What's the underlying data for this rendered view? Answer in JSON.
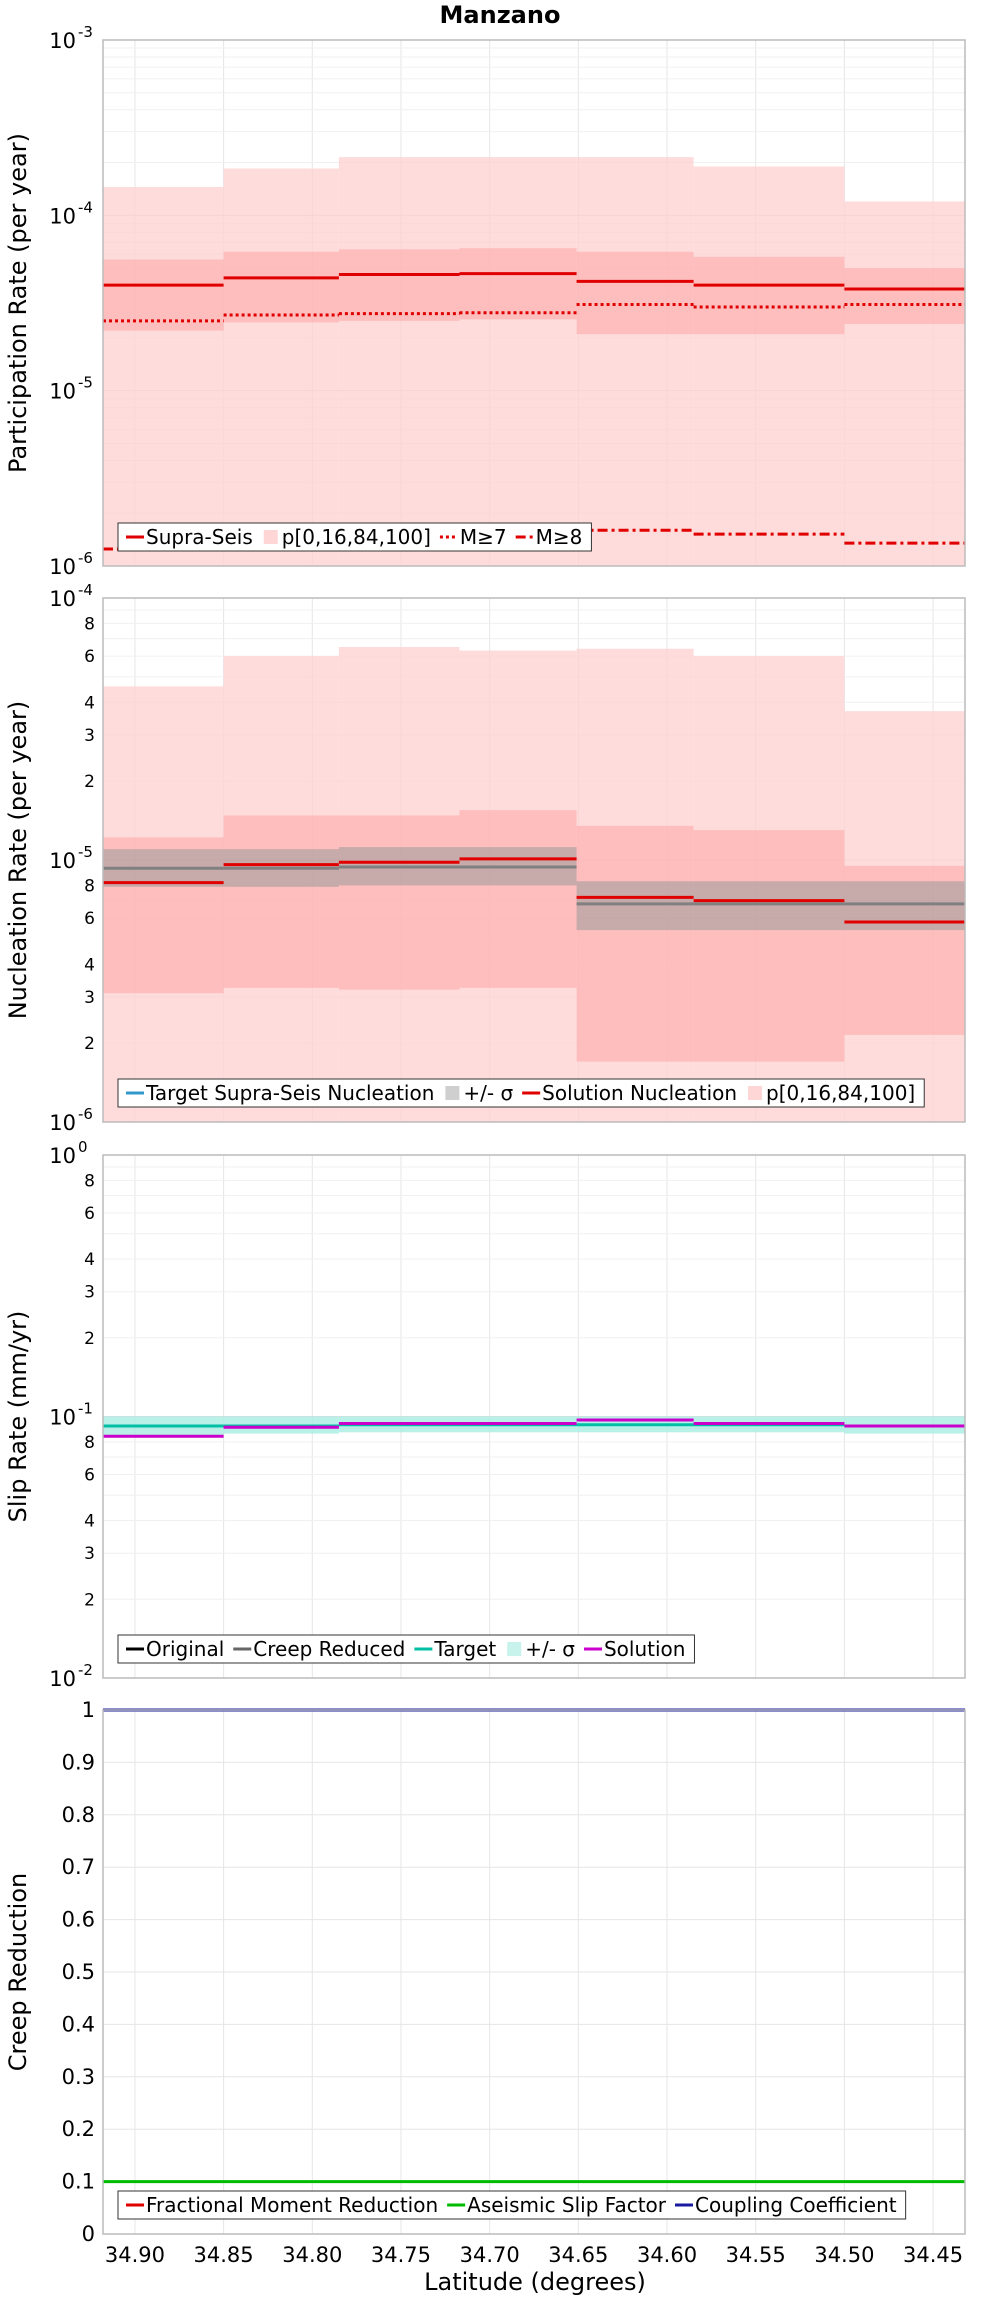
{
  "title": "Manzano",
  "colors": {
    "supra_seis": "#e00000",
    "bounds_fill": "#ffb0b0",
    "target_nucleation": "#3399cc",
    "sigma_gray": "#999999",
    "target_slip": "#00bfa5",
    "sigma_slip": "#a8eee4",
    "solution_slip": "#cc00cc",
    "aseismic": "#00bb00",
    "coupling": "#1a1aa0",
    "grid": "#e6e6e6"
  },
  "x_axis": {
    "label": "Latitude (degrees)",
    "range": [
      34.918,
      34.432
    ],
    "ticks": [
      "34.90",
      "34.85",
      "34.80",
      "34.75",
      "34.70",
      "34.65",
      "34.60",
      "34.55",
      "34.50",
      "34.45"
    ],
    "tick_values": [
      34.9,
      34.85,
      34.8,
      34.75,
      34.7,
      34.65,
      34.6,
      34.55,
      34.5,
      34.45
    ]
  },
  "chart_data": [
    {
      "type": "line",
      "name": "participation",
      "ylabel": "Participation Rate (per year)",
      "yscale": "log",
      "ylim": [
        1e-06,
        0.001
      ],
      "major_ticks": [
        {
          "base": "10",
          "exp": "-6",
          "value": 1e-06
        },
        {
          "base": "10",
          "exp": "-5",
          "value": 1e-05
        },
        {
          "base": "10",
          "exp": "-4",
          "value": 0.0001
        },
        {
          "base": "10",
          "exp": "-3",
          "value": 0.001
        }
      ],
      "minor_tick_labels": [],
      "bin_edges": [
        34.918,
        34.85,
        34.785,
        34.717,
        34.651,
        34.585,
        34.5,
        34.432
      ],
      "series": [
        {
          "name": "Supra-Seis",
          "style": "solid",
          "values": [
            4e-05,
            4.4e-05,
            4.6e-05,
            4.65e-05,
            4.2e-05,
            4e-05,
            3.8e-05
          ]
        },
        {
          "name": "M≥7",
          "style": "dotted",
          "values": [
            2.5e-05,
            2.7e-05,
            2.75e-05,
            2.78e-05,
            3.1e-05,
            3e-05,
            3.1e-05
          ]
        },
        {
          "name": "M≥8",
          "style": "dashdot",
          "values": [
            1.25e-06,
            1.3e-06,
            1.35e-06,
            1.35e-06,
            1.6e-06,
            1.52e-06,
            1.35e-06
          ]
        }
      ],
      "bands": [
        {
          "name": "p[0,16,84,100]",
          "kind": "outer",
          "lower": [
            1e-06,
            1e-06,
            1e-06,
            1e-06,
            1e-06,
            1e-06,
            1e-06
          ],
          "upper": [
            0.000145,
            0.000185,
            0.000215,
            0.000215,
            0.000215,
            0.00019,
            0.00012
          ]
        },
        {
          "name": "",
          "kind": "inner",
          "lower": [
            2.2e-05,
            2.45e-05,
            2.5e-05,
            2.55e-05,
            2.1e-05,
            2.1e-05,
            2.4e-05
          ],
          "upper": [
            5.6e-05,
            6.2e-05,
            6.4e-05,
            6.5e-05,
            6.2e-05,
            5.8e-05,
            5e-05
          ]
        }
      ],
      "legend": [
        {
          "label": "Supra-Seis",
          "kind": "line",
          "color": "#e00000",
          "style": "solid"
        },
        {
          "label": "p[0,16,84,100]",
          "kind": "box",
          "color": "#ffd6d6"
        },
        {
          "label": "M≥7",
          "kind": "line",
          "color": "#e00000",
          "style": "dotted"
        },
        {
          "label": "M≥8",
          "kind": "line",
          "color": "#e00000",
          "style": "dashdot"
        }
      ]
    },
    {
      "type": "line",
      "name": "nucleation",
      "ylabel": "Nucleation Rate (per year)",
      "yscale": "log",
      "ylim": [
        1e-06,
        0.0001
      ],
      "major_ticks": [
        {
          "base": "10",
          "exp": "-6",
          "value": 1e-06
        },
        {
          "base": "10",
          "exp": "-5",
          "value": 1e-05
        },
        {
          "base": "10",
          "exp": "-4",
          "value": 0.0001
        }
      ],
      "minor_tick_labels": [
        {
          "label": "2",
          "value": 2e-06
        },
        {
          "label": "3",
          "value": 3e-06
        },
        {
          "label": "4",
          "value": 4e-06
        },
        {
          "label": "6",
          "value": 6e-06
        },
        {
          "label": "8",
          "value": 8e-06
        },
        {
          "label": "2",
          "value": 2e-05
        },
        {
          "label": "3",
          "value": 3e-05
        },
        {
          "label": "4",
          "value": 4e-05
        },
        {
          "label": "6",
          "value": 6e-05
        },
        {
          "label": "8",
          "value": 8e-05
        }
      ],
      "bin_edges": [
        34.918,
        34.85,
        34.785,
        34.717,
        34.651,
        34.585,
        34.5,
        34.432
      ],
      "series": [
        {
          "name": "Target Supra-Seis Nucleation",
          "style": "solid",
          "color": "#808080",
          "values": [
            9.3e-06,
            9.3e-06,
            9.4e-06,
            9.4e-06,
            6.8e-06,
            6.8e-06,
            6.8e-06
          ]
        },
        {
          "name": "Solution Nucleation",
          "style": "solid",
          "color": "#e00000",
          "values": [
            8.2e-06,
            9.6e-06,
            9.8e-06,
            1.01e-05,
            7.2e-06,
            7e-06,
            5.8e-06
          ]
        }
      ],
      "bands": [
        {
          "name": "p[0,16,84,100]",
          "kind": "outer",
          "lower": [
            1e-06,
            1e-06,
            1e-06,
            1e-06,
            1e-06,
            1e-06,
            1e-06
          ],
          "upper": [
            4.6e-05,
            6e-05,
            6.5e-05,
            6.3e-05,
            6.4e-05,
            6e-05,
            3.7e-05
          ]
        },
        {
          "name": "",
          "kind": "inner",
          "lower": [
            3.1e-06,
            3.25e-06,
            3.2e-06,
            3.25e-06,
            1.7e-06,
            1.7e-06,
            2.15e-06
          ],
          "upper": [
            1.22e-05,
            1.48e-05,
            1.48e-05,
            1.55e-05,
            1.35e-05,
            1.3e-05,
            9.5e-06
          ]
        },
        {
          "name": "+/- σ",
          "kind": "sigma",
          "lower": [
            7.9e-06,
            7.9e-06,
            8e-06,
            8e-06,
            5.4e-06,
            5.4e-06,
            5.4e-06
          ],
          "upper": [
            1.1e-05,
            1.1e-05,
            1.12e-05,
            1.12e-05,
            8.3e-06,
            8.3e-06,
            8.3e-06
          ]
        }
      ],
      "legend": [
        {
          "label": "Target Supra-Seis Nucleation",
          "kind": "line",
          "color": "#3399cc",
          "style": "solid"
        },
        {
          "label": "+/- σ",
          "kind": "box",
          "color": "#cfcfcf"
        },
        {
          "label": "Solution Nucleation",
          "kind": "line",
          "color": "#e00000",
          "style": "solid"
        },
        {
          "label": "p[0,16,84,100]",
          "kind": "box",
          "color": "#ffd6d6"
        }
      ]
    },
    {
      "type": "line",
      "name": "slip",
      "ylabel": "Slip Rate (mm/yr)",
      "yscale": "log",
      "ylim": [
        0.01,
        1
      ],
      "major_ticks": [
        {
          "base": "10",
          "exp": "-2",
          "value": 0.01
        },
        {
          "base": "10",
          "exp": "-1",
          "value": 0.1
        },
        {
          "base": "10",
          "exp": "0",
          "value": 1
        }
      ],
      "minor_tick_labels": [
        {
          "label": "2",
          "value": 0.02
        },
        {
          "label": "3",
          "value": 0.03
        },
        {
          "label": "4",
          "value": 0.04
        },
        {
          "label": "6",
          "value": 0.06
        },
        {
          "label": "8",
          "value": 0.08
        },
        {
          "label": "2",
          "value": 0.2
        },
        {
          "label": "3",
          "value": 0.3
        },
        {
          "label": "4",
          "value": 0.4
        },
        {
          "label": "6",
          "value": 0.6
        },
        {
          "label": "8",
          "value": 0.8
        }
      ],
      "bin_edges": [
        34.918,
        34.85,
        34.785,
        34.717,
        34.651,
        34.585,
        34.5,
        34.432
      ],
      "series": [
        {
          "name": "Target",
          "style": "solid",
          "color": "#00bfa5",
          "values": [
            0.092,
            0.092,
            0.093,
            0.093,
            0.093,
            0.093,
            0.092
          ]
        },
        {
          "name": "Solution",
          "style": "solid",
          "color": "#cc00cc",
          "values": [
            0.084,
            0.091,
            0.094,
            0.094,
            0.097,
            0.094,
            0.092
          ]
        }
      ],
      "bands": [
        {
          "name": "+/- σ",
          "kind": "sigma",
          "lower": [
            0.085,
            0.086,
            0.087,
            0.087,
            0.087,
            0.087,
            0.086
          ],
          "upper": [
            0.1,
            0.1,
            0.1,
            0.1,
            0.1,
            0.1,
            0.1
          ]
        }
      ],
      "legend": [
        {
          "label": "Original",
          "kind": "line",
          "color": "#000000",
          "style": "solid"
        },
        {
          "label": "Creep Reduced",
          "kind": "line",
          "color": "#666666",
          "style": "solid"
        },
        {
          "label": "Target",
          "kind": "line",
          "color": "#00bfa5",
          "style": "solid"
        },
        {
          "label": "+/- σ",
          "kind": "box",
          "color": "#c8f2ec"
        },
        {
          "label": "Solution",
          "kind": "line",
          "color": "#cc00cc",
          "style": "solid"
        }
      ]
    },
    {
      "type": "line",
      "name": "creep",
      "ylabel": "Creep Reduction",
      "yscale": "linear",
      "ylim": [
        0,
        1
      ],
      "linear_ticks": [
        "0",
        "0.1",
        "0.2",
        "0.3",
        "0.4",
        "0.5",
        "0.6",
        "0.7",
        "0.8",
        "0.9",
        "1"
      ],
      "linear_tick_values": [
        0,
        0.1,
        0.2,
        0.3,
        0.4,
        0.5,
        0.6,
        0.7,
        0.8,
        0.9,
        1
      ],
      "bin_edges": [
        34.918,
        34.432
      ],
      "series": [
        {
          "name": "Aseismic Slip Factor",
          "style": "solid",
          "color": "#00bb00",
          "values": [
            0.1
          ]
        },
        {
          "name": "Coupling Coefficient",
          "style": "solid",
          "color": "#1a1aa0",
          "values": [
            1.0
          ]
        }
      ],
      "bands": [],
      "legend": [
        {
          "label": "Fractional Moment Reduction",
          "kind": "line",
          "color": "#e00000",
          "style": "solid"
        },
        {
          "label": "Aseismic Slip Factor",
          "kind": "line",
          "color": "#00bb00",
          "style": "solid"
        },
        {
          "label": "Coupling Coefficient",
          "kind": "line",
          "color": "#1a1aa0",
          "style": "solid"
        }
      ]
    }
  ]
}
